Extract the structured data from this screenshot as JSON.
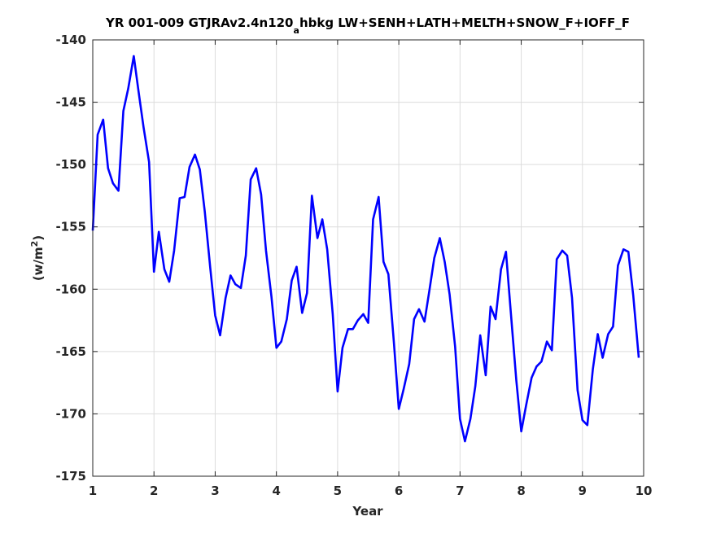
{
  "chart_data": {
    "type": "line",
    "title_main": "YR 001-009 GTJRAv2.4n120",
    "title_sub": "a",
    "title_rest": "hbkg LW+SENH+LATH+MELTH+SNOW_F+IOFF_F",
    "xlabel": "Year",
    "ylabel_prefix": "(w/m",
    "ylabel_sup": "2",
    "ylabel_suffix": ")",
    "xlim": [
      1,
      10
    ],
    "ylim": [
      -175,
      -140
    ],
    "xticks": [
      "1",
      "2",
      "3",
      "4",
      "5",
      "6",
      "7",
      "8",
      "9",
      "10"
    ],
    "yticks": [
      "-140",
      "-145",
      "-150",
      "-155",
      "-160",
      "-165",
      "-170",
      "-175"
    ],
    "grid": true,
    "line_color": "#0000ff",
    "series": [
      {
        "x": [
          1.0,
          1.08,
          1.17,
          1.25,
          1.33,
          1.42,
          1.5,
          1.58,
          1.67,
          1.75,
          1.83,
          1.92,
          2.0,
          2.08,
          2.17,
          2.25,
          2.33,
          2.42,
          2.5,
          2.58,
          2.67,
          2.75,
          2.83,
          2.92,
          3.0,
          3.08,
          3.17,
          3.25,
          3.33,
          3.42,
          3.5,
          3.58,
          3.67,
          3.75,
          3.83,
          3.92,
          4.0,
          4.08,
          4.17,
          4.25,
          4.33,
          4.42,
          4.5,
          4.58,
          4.67,
          4.75,
          4.83,
          4.92,
          5.0,
          5.08,
          5.17,
          5.25,
          5.33,
          5.42,
          5.5,
          5.58,
          5.67,
          5.75,
          5.83,
          5.92,
          6.0,
          6.08,
          6.17,
          6.25,
          6.33,
          6.42,
          6.5,
          6.58,
          6.67,
          6.75,
          6.83,
          6.92,
          7.0,
          7.08,
          7.17,
          7.25,
          7.33,
          7.42,
          7.5,
          7.58,
          7.67,
          7.75,
          7.83,
          7.92,
          8.0,
          8.08,
          8.17,
          8.25,
          8.33,
          8.42,
          8.5,
          8.58,
          8.67,
          8.75,
          8.83,
          8.92,
          9.0,
          9.08,
          9.17,
          9.25,
          9.33,
          9.42,
          9.5,
          9.58,
          9.67,
          9.75,
          9.83,
          9.92
        ],
        "y": [
          -155.3,
          -147.6,
          -146.4,
          -150.3,
          -151.5,
          -152.1,
          -145.7,
          -143.9,
          -141.3,
          -144.2,
          -147.0,
          -149.8,
          -158.6,
          -155.4,
          -158.4,
          -159.4,
          -156.9,
          -152.7,
          -152.6,
          -150.2,
          -149.2,
          -150.4,
          -153.8,
          -158.3,
          -162.1,
          -163.7,
          -160.7,
          -158.9,
          -159.6,
          -159.9,
          -157.3,
          -151.2,
          -150.3,
          -152.4,
          -156.9,
          -160.6,
          -164.7,
          -164.2,
          -162.4,
          -159.3,
          -158.2,
          -161.9,
          -160.3,
          -152.5,
          -155.9,
          -154.4,
          -156.8,
          -162.0,
          -168.2,
          -164.7,
          -163.2,
          -163.2,
          -162.5,
          -162.0,
          -162.7,
          -154.4,
          -152.6,
          -157.8,
          -158.8,
          -164.3,
          -169.6,
          -168.0,
          -166.0,
          -162.4,
          -161.6,
          -162.6,
          -160.1,
          -157.5,
          -155.9,
          -157.8,
          -160.4,
          -164.6,
          -170.4,
          -172.2,
          -170.4,
          -167.8,
          -163.7,
          -166.9,
          -161.4,
          -162.4,
          -158.4,
          -157.0,
          -161.9,
          -167.3,
          -171.4,
          -169.3,
          -167.1,
          -166.2,
          -165.8,
          -164.2,
          -164.9,
          -157.6,
          -156.9,
          -157.3,
          -160.7,
          -168.1,
          -170.5,
          -170.9,
          -166.4,
          -163.6,
          -165.5,
          -163.6,
          -163.0,
          -158.1,
          -156.8,
          -157.0,
          -160.5,
          -165.5
        ]
      }
    ]
  }
}
